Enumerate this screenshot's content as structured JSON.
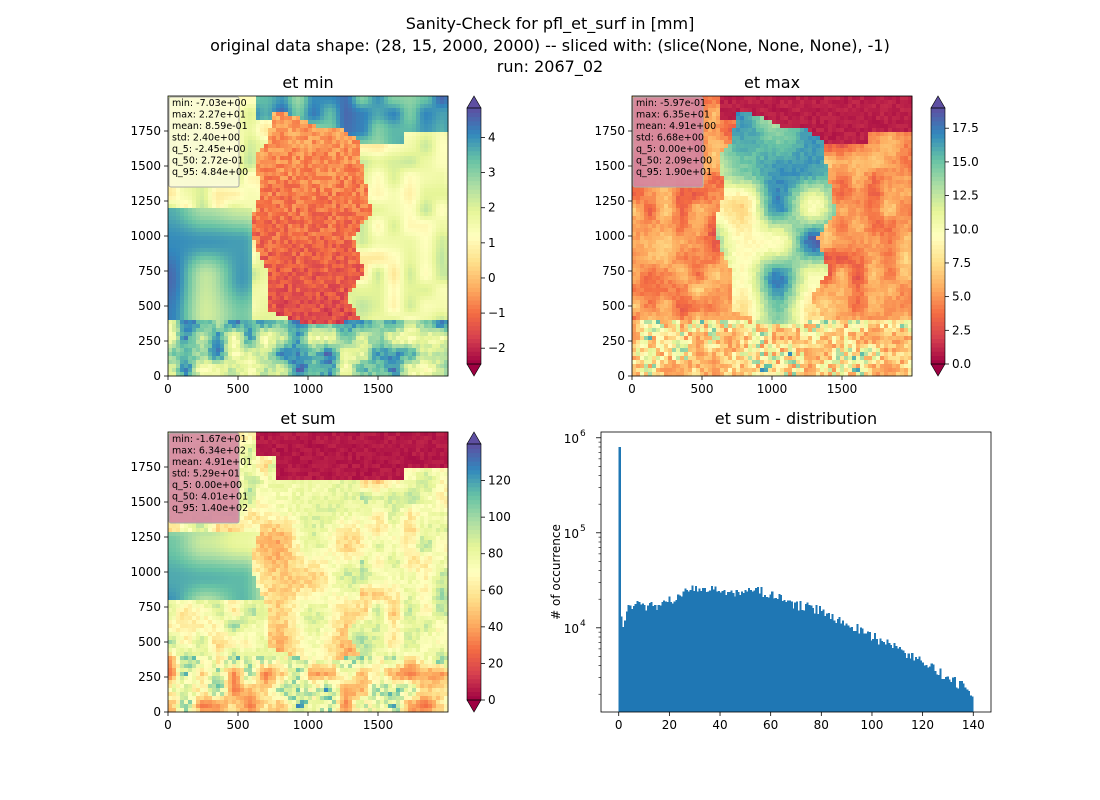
{
  "figure": {
    "title_lines": [
      "Sanity-Check for pfl_et_surf in [mm]",
      "original data shape: (28, 15, 2000, 2000) -- sliced with: (slice(None, None, None), -1)",
      "run: 2067_02"
    ]
  },
  "colors": {
    "axis": "#000000",
    "histogram_bar": "#1f77b4",
    "stats_box_light": "#fbfbd8",
    "stats_box_pink": "#d486a2",
    "land_low": "#9e0142",
    "land_high": "#5e4fa2"
  },
  "chart_data": [
    {
      "id": "et_min",
      "type": "heatmap",
      "title": "et min",
      "x_ticks": [
        "0",
        "500",
        "1000",
        "1500"
      ],
      "y_ticks": [
        "0",
        "250",
        "500",
        "750",
        "1000",
        "1250",
        "1500",
        "1750"
      ],
      "x_range": [
        0,
        2000
      ],
      "y_range": [
        0,
        2000
      ],
      "colormap": "Spectral",
      "colorbar_ticks": [
        "−2",
        "−1",
        "0",
        "1",
        "2",
        "3",
        "4"
      ],
      "colorbar_range": [
        -2.45,
        4.84
      ],
      "stats_box": "light",
      "stats": [
        "min: -7.03e+00",
        "max: 2.27e+01",
        "mean: 8.59e-01",
        "std: 2.40e+00",
        "q_5: -2.45e+00",
        "q_50: 2.72e-01",
        "q_95: 4.84e+00"
      ]
    },
    {
      "id": "et_max",
      "type": "heatmap",
      "title": "et max",
      "x_ticks": [
        "0",
        "500",
        "1000",
        "1500"
      ],
      "y_ticks": [
        "0",
        "250",
        "500",
        "750",
        "1000",
        "1250",
        "1500",
        "1750"
      ],
      "x_range": [
        0,
        2000
      ],
      "y_range": [
        0,
        2000
      ],
      "colormap": "Spectral",
      "colorbar_ticks": [
        "0.0",
        "2.5",
        "5.0",
        "7.5",
        "10.0",
        "12.5",
        "15.0",
        "17.5"
      ],
      "colorbar_range": [
        0,
        19.0
      ],
      "stats_box": "pink",
      "stats": [
        "min: -5.97e-01",
        "max: 6.35e+01",
        "mean: 4.91e+00",
        "std: 6.68e+00",
        "q_5: 0.00e+00",
        "q_50: 2.09e+00",
        "q_95: 1.90e+01"
      ]
    },
    {
      "id": "et_sum",
      "type": "heatmap",
      "title": "et sum",
      "x_ticks": [
        "0",
        "500",
        "1000",
        "1500"
      ],
      "y_ticks": [
        "0",
        "250",
        "500",
        "750",
        "1000",
        "1250",
        "1500",
        "1750"
      ],
      "x_range": [
        0,
        2000
      ],
      "y_range": [
        0,
        2000
      ],
      "colormap": "Spectral",
      "colorbar_ticks": [
        "0",
        "20",
        "40",
        "60",
        "80",
        "100",
        "120"
      ],
      "colorbar_range": [
        0,
        140
      ],
      "stats_box": "pink",
      "stats": [
        "min: -1.67e+01",
        "max: 6.34e+02",
        "mean: 4.91e+01",
        "std: 5.29e+01",
        "q_5: 0.00e+00",
        "q_50: 4.01e+01",
        "q_95: 1.40e+02"
      ]
    },
    {
      "id": "et_sum_distribution",
      "type": "bar",
      "title": "et sum - distribution",
      "ylabel": "# of occurrence",
      "y_scale": "log",
      "x_range": [
        -7,
        147
      ],
      "y_range": [
        1300,
        1150000
      ],
      "x_ticks": [
        "0",
        "20",
        "40",
        "60",
        "80",
        "100",
        "120",
        "140"
      ],
      "y_ticks": [
        "10^4",
        "10^5",
        "10^6"
      ],
      "bins": {
        "start": 0,
        "end": 140,
        "count": 200
      },
      "spike": {
        "x": 0,
        "count": 800000
      },
      "profile_points": [
        [
          0,
          13000
        ],
        [
          2,
          11000
        ],
        [
          4,
          16000
        ],
        [
          6,
          18000
        ],
        [
          8,
          17500
        ],
        [
          10,
          17000
        ],
        [
          14,
          16500
        ],
        [
          18,
          18500
        ],
        [
          22,
          20500
        ],
        [
          26,
          23500
        ],
        [
          30,
          25500
        ],
        [
          35,
          25500
        ],
        [
          40,
          24500
        ],
        [
          45,
          23000
        ],
        [
          50,
          23000
        ],
        [
          55,
          24500
        ],
        [
          60,
          22500
        ],
        [
          65,
          19500
        ],
        [
          70,
          17500
        ],
        [
          75,
          16500
        ],
        [
          80,
          15000
        ],
        [
          85,
          13000
        ],
        [
          90,
          11000
        ],
        [
          95,
          9800
        ],
        [
          100,
          8200
        ],
        [
          105,
          7000
        ],
        [
          110,
          6000
        ],
        [
          115,
          5000
        ],
        [
          120,
          4300
        ],
        [
          125,
          3600
        ],
        [
          130,
          3000
        ],
        [
          135,
          2500
        ],
        [
          140,
          2000
        ]
      ]
    }
  ]
}
